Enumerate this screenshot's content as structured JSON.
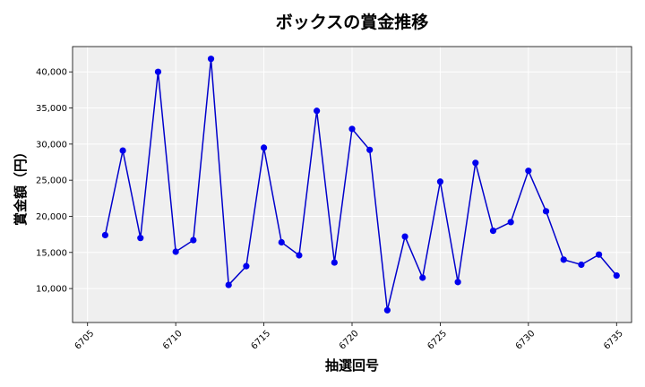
{
  "chart_data": {
    "type": "line",
    "title": "ボックスの賞金推移",
    "xlabel": "抽選回号",
    "ylabel": "賞金額（円）",
    "xlim": [
      6704.15,
      6735.85
    ],
    "ylim": [
      5300,
      43500
    ],
    "xticks": [
      6705,
      6710,
      6715,
      6720,
      6725,
      6730,
      6735
    ],
    "yticks": [
      10000,
      15000,
      20000,
      25000,
      30000,
      35000,
      40000
    ],
    "ytick_labels": [
      "10,000",
      "15,000",
      "20,000",
      "25,000",
      "30,000",
      "35,000",
      "40,000"
    ],
    "grid": true,
    "series": [
      {
        "color": "#0000ee",
        "x": [
          6706,
          6707,
          6708,
          6709,
          6710,
          6711,
          6712,
          6713,
          6714,
          6715,
          6716,
          6717,
          6718,
          6719,
          6720,
          6721,
          6722,
          6723,
          6724,
          6725,
          6726,
          6727,
          6728,
          6729,
          6730,
          6731,
          6732,
          6733,
          6734,
          6735
        ],
        "y": [
          17400,
          29100,
          17000,
          40000,
          15100,
          16700,
          41800,
          10500,
          13100,
          29500,
          16400,
          14600,
          34600,
          13600,
          32100,
          29200,
          7000,
          17200,
          11500,
          24800,
          10900,
          27400,
          18000,
          19200,
          26300,
          20700,
          14000,
          13300,
          14700,
          11800
        ]
      }
    ]
  }
}
